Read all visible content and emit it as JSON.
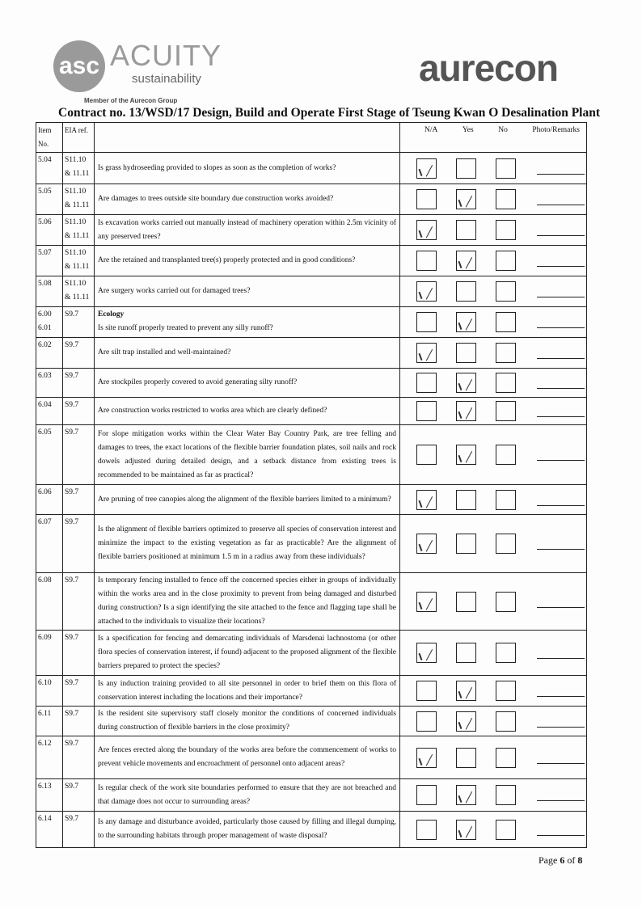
{
  "logos": {
    "acuity_monogram": "asc",
    "acuity_name": "ACUITY",
    "acuity_sub": "sustainability",
    "acuity_member": "Member of the Aurecon Group",
    "aurecon": "aurecon"
  },
  "title": "Contract no.  13/WSD/17 Design, Build and Operate First Stage of Tseung Kwan O Desalination Plant",
  "headers": {
    "item": "Item No.",
    "eia": "EIA ref.",
    "na": "N/A",
    "yes": "Yes",
    "no": "No",
    "remarks": "Photo/Remarks"
  },
  "rows": [
    {
      "item": "5.04",
      "eia": "S11.10 & 11.11",
      "question": "Is grass hydroseeding provided to slopes as soon as the completion of works?",
      "answer": "N/A"
    },
    {
      "item": "5.05",
      "eia": "S11.10 & 11.11",
      "question": "Are damages to trees outside site boundary due construction works avoided?",
      "answer": "Yes"
    },
    {
      "item": "5.06",
      "eia": "S11.10 & 11.11",
      "question": "Is excavation works carried out manually instead of machinery operation within 2.5m vicinity of any preserved trees?",
      "answer": "N/A"
    },
    {
      "item": "5.07",
      "eia": "S11.10 & 11.11",
      "question": "Are the retained and transplanted tree(s) properly protected and in good conditions?",
      "answer": "Yes"
    },
    {
      "item": "5.08",
      "eia": "S11.10 & 11.11",
      "question": "Are surgery works carried out for damaged trees?",
      "answer": "N/A"
    },
    {
      "item": "6.00 6.01",
      "eia": "S9.7",
      "heading": "Ecology",
      "question": "Is site runoff properly treated to prevent any silly runoff?",
      "answer": "Yes"
    },
    {
      "item": "6.02",
      "eia": "S9.7",
      "question": "Are silt trap installed and well-maintained?",
      "answer": "N/A"
    },
    {
      "item": "6.03",
      "eia": "S9.7",
      "question": "Are stockpiles properly covered to avoid generating silty runoff?",
      "answer": "Yes"
    },
    {
      "item": "6.04",
      "eia": "S9.7",
      "question": "Are construction works restricted to works area which are clearly defined?",
      "answer": "Yes"
    },
    {
      "item": "6.05",
      "eia": "S9.7",
      "question": "For slope mitigation works within the Clear Water Bay Country Park, are tree felling and damages to trees, the exact locations of the flexible barrier foundation plates, soil nails and rock dowels adjusted during detailed design, and a setback distance from existing trees is recommended to be maintained as far as practical?",
      "answer": "Yes"
    },
    {
      "item": "6.06",
      "eia": "S9.7",
      "question": "Are pruning of tree canopies along the alignment of the flexible barriers limited to a minimum?",
      "answer": "N/A"
    },
    {
      "item": "6.07",
      "eia": "S9.7",
      "question": "Is the alignment of flexible barriers optimized to preserve all species of conservation interest and minimize the impact to the existing vegetation as far as practicable? Are the alignment of flexible barriers positioned at minimum 1.5 m in a radius away from these individuals?",
      "answer": "N/A"
    },
    {
      "item": "6.08",
      "eia": "S9.7",
      "question": "Is temporary fencing installed to fence off the concerned species either in groups of individually within the works area and in the close proximity to prevent from being damaged and disturbed during construction? Is a sign identifying the site attached to the fence and flagging tape shall be attached to the individuals to visualize their locations?",
      "answer": "N/A"
    },
    {
      "item": "6.09",
      "eia": "S9.7",
      "question": "Is a specification for fencing and demarcating individuals of Marsdenai lachnostoma (or other flora species of conservation interest, if found) adjacent to the proposed alignment of the flexible barriers prepared to protect the species?",
      "answer": "N/A"
    },
    {
      "item": "6.10",
      "eia": "S9.7",
      "question": "Is any induction training provided to all site personnel in order to brief them on this flora of conservation interest including the locations and their importance?",
      "answer": "Yes"
    },
    {
      "item": "6.11",
      "eia": "S9.7",
      "question": "Is the resident site supervisory staff closely monitor the conditions of concerned individuals during construction of flexible barriers in the close  proximity?",
      "answer": "Yes"
    },
    {
      "item": "6.12",
      "eia": "S9.7",
      "question": "Are fences erected along the boundary of the works area before the commencement of works to prevent vehicle movements and encroachment of personnel onto adjacent areas?",
      "answer": "N/A"
    },
    {
      "item": "6.13",
      "eia": "S9.7",
      "question": "Is regular check of the work site boundaries performed to ensure that they are not breached and that damage does not occur to surrounding areas?",
      "answer": "Yes"
    },
    {
      "item": "6.14",
      "eia": "S9.7",
      "question": "Is any damage and disturbance avoided, particularly those caused by filling and illegal dumping, to the surrounding habitats through proper management of waste disposal?",
      "answer": "Yes"
    }
  ],
  "footer": {
    "page_label": "Page",
    "page": "6",
    "of": "of",
    "total": "8"
  }
}
